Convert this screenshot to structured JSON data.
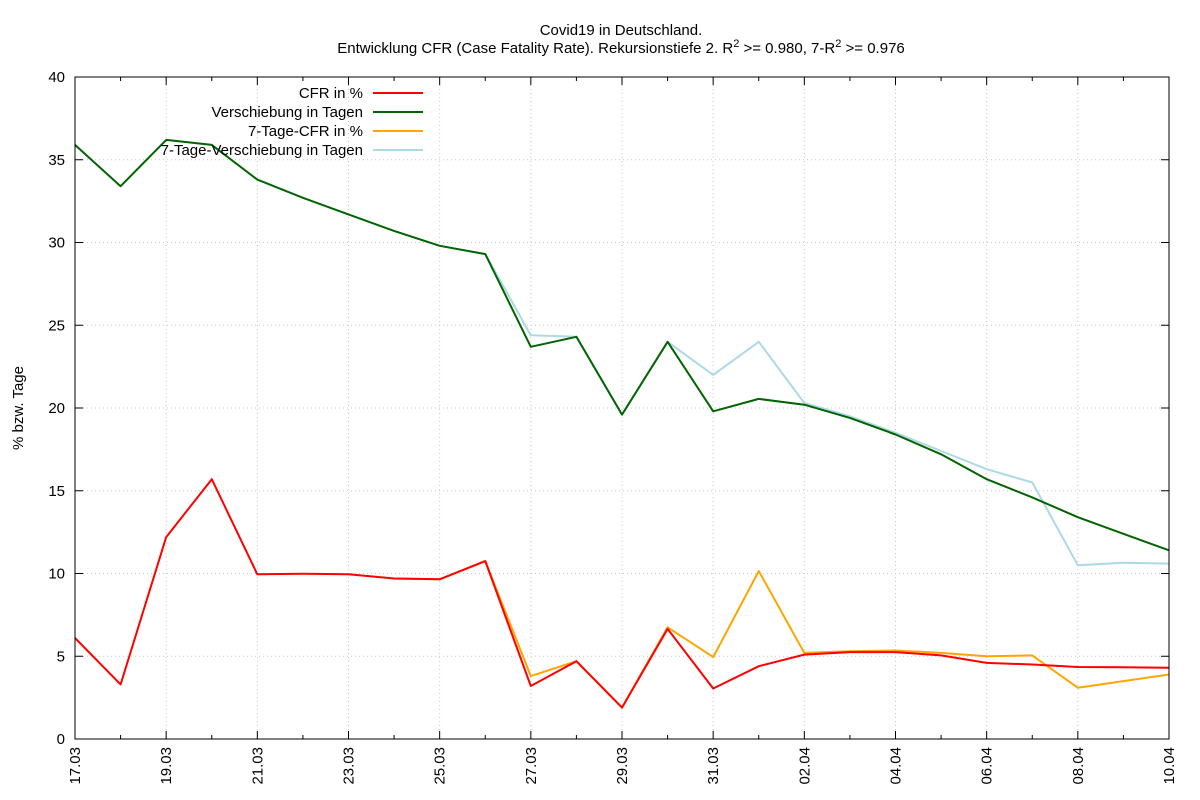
{
  "chart_data": {
    "type": "line",
    "title_line1": "Covid19 in Deutschland.",
    "title_line2_prefix": "Entwicklung CFR (Case Fatality Rate). Rekursionstiefe 2. R",
    "title_line2_mid": " >= 0.980, 7-R",
    "title_line2_suffix": " >= 0.976",
    "superscript": "2",
    "ylabel": "% bzw. Tage",
    "xlabel": "",
    "ylim": [
      0,
      40
    ],
    "yticks": [
      "0",
      "5",
      "10",
      "15",
      "20",
      "25",
      "30",
      "35",
      "40"
    ],
    "x": [
      "17.03",
      "18.03",
      "19.03",
      "20.03",
      "21.03",
      "22.03",
      "23.03",
      "24.03",
      "25.03",
      "26.03",
      "27.03",
      "28.03",
      "29.03",
      "30.03",
      "31.03",
      "01.04",
      "02.04",
      "03.04",
      "04.04",
      "05.04",
      "06.04",
      "07.04",
      "08.04",
      "09.04",
      "10.04"
    ],
    "xtick_labels": [
      "17.03",
      "19.03",
      "21.03",
      "23.03",
      "25.03",
      "27.03",
      "29.03",
      "31.03",
      "02.04",
      "04.04",
      "06.04",
      "08.04",
      "10.04"
    ],
    "grid": true,
    "legend_position": "top-left",
    "series": [
      {
        "name": "CFR in %",
        "color": "#ff0000",
        "values": [
          6.1,
          3.3,
          12.2,
          15.7,
          9.95,
          9.98,
          9.95,
          9.7,
          9.65,
          10.75,
          3.2,
          4.7,
          1.9,
          6.65,
          3.05,
          4.4,
          5.1,
          5.25,
          5.25,
          5.05,
          4.6,
          4.5,
          4.35,
          4.33,
          4.3
        ]
      },
      {
        "name": "Verschiebung in Tagen",
        "color": "#006400",
        "values": [
          35.9,
          33.4,
          36.2,
          35.9,
          33.8,
          32.7,
          31.7,
          30.7,
          29.8,
          29.3,
          23.7,
          24.3,
          19.6,
          24.0,
          19.8,
          20.55,
          20.2,
          19.4,
          18.4,
          17.2,
          15.7,
          14.6,
          13.4,
          12.4,
          11.4
        ]
      },
      {
        "name": "7-Tage-CFR in %",
        "color": "#ffa500",
        "values": [
          null,
          null,
          null,
          null,
          null,
          null,
          null,
          9.7,
          9.65,
          10.75,
          3.8,
          4.7,
          1.9,
          6.75,
          4.95,
          10.15,
          5.2,
          5.3,
          5.35,
          5.2,
          5.0,
          5.05,
          3.1,
          3.5,
          3.9
        ]
      },
      {
        "name": "7-Tage-Verschiebung in Tagen",
        "color": "#add8e6",
        "values": [
          null,
          null,
          null,
          null,
          null,
          null,
          null,
          30.7,
          29.8,
          29.3,
          24.4,
          24.3,
          19.6,
          24.0,
          22.0,
          24.0,
          20.3,
          19.5,
          18.5,
          17.4,
          16.3,
          15.5,
          10.5,
          10.65,
          10.6
        ]
      }
    ]
  }
}
